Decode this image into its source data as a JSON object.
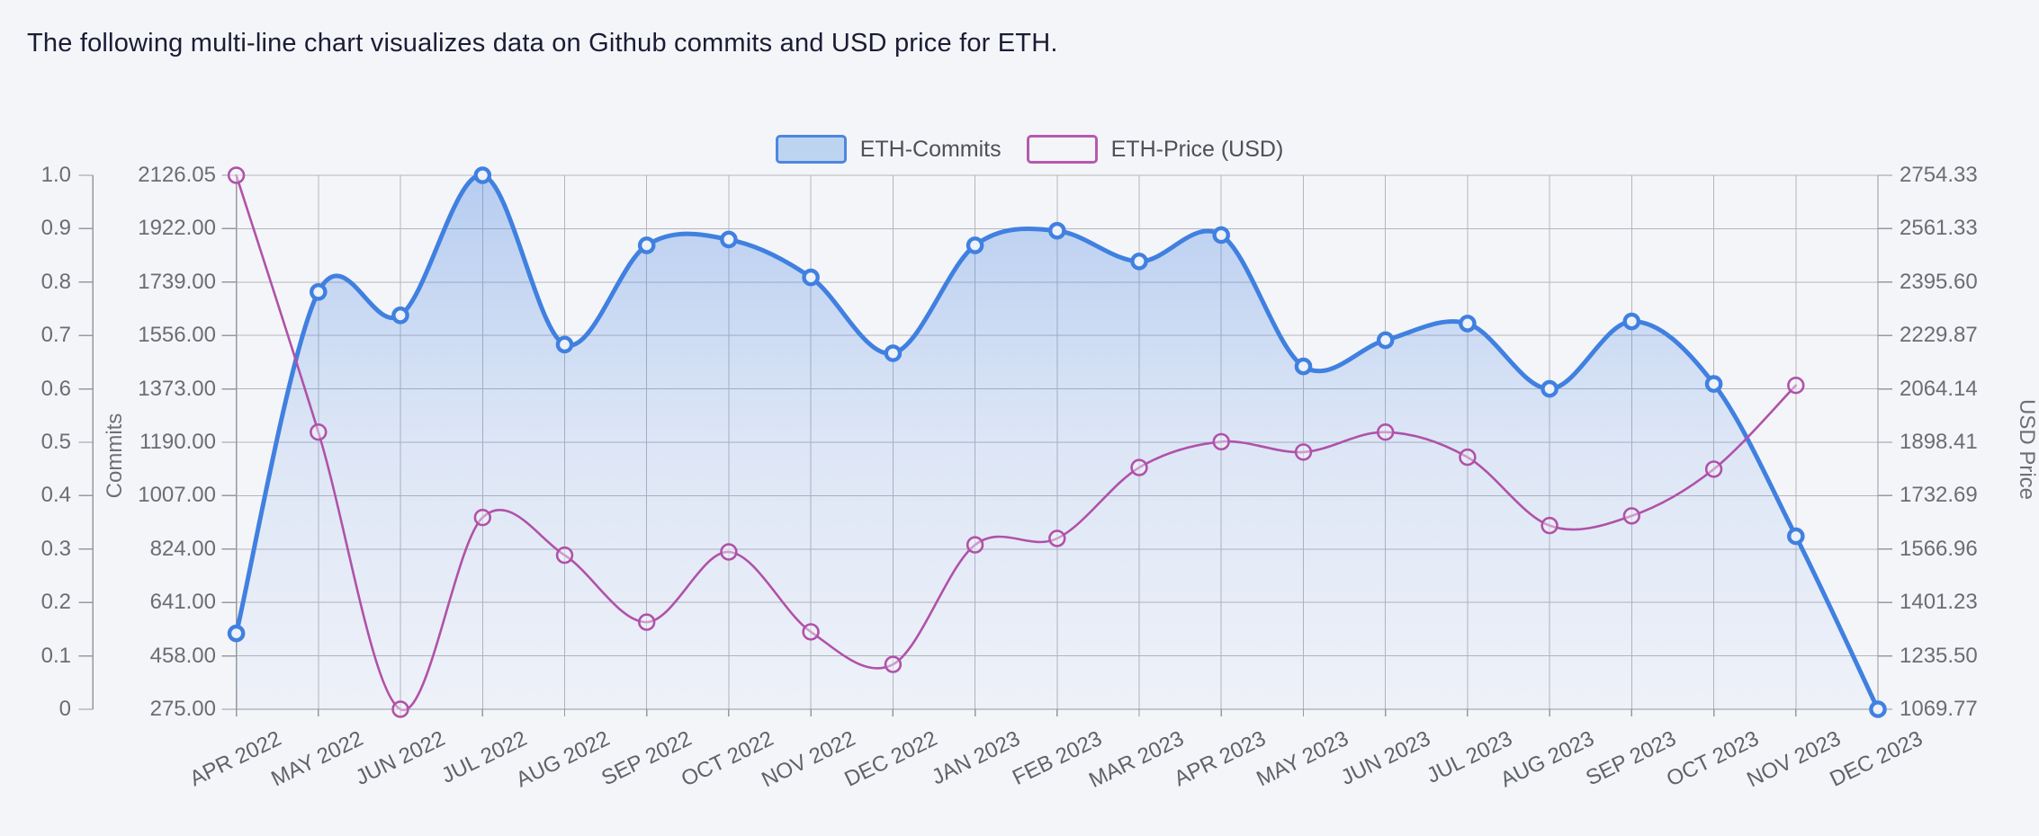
{
  "page": {
    "title": "The following multi-line chart visualizes data on Github commits and USD price for ETH.",
    "background": "#f4f5f9"
  },
  "legend": {
    "items": [
      {
        "label": "ETH-Commits",
        "border": "#4e86e0",
        "fill": "#bdd4f1"
      },
      {
        "label": "ETH-Price (USD)",
        "border": "#b55ab0",
        "fill": "transparent"
      }
    ]
  },
  "chart_data": {
    "type": "line",
    "title": "",
    "categories": [
      "APR 2022",
      "MAY 2022",
      "JUN 2022",
      "JUL 2022",
      "AUG 2022",
      "SEP 2022",
      "OCT 2022",
      "NOV 2022",
      "DEC 2022",
      "JAN 2023",
      "FEB 2023",
      "MAR 2023",
      "APR 2023",
      "MAY 2023",
      "JUN 2023",
      "JUL 2023",
      "AUG 2023",
      "SEP 2023",
      "OCT 2023",
      "NOV 2023",
      "DEC 2023"
    ],
    "series": [
      {
        "name": "ETH-Commits",
        "axis": "left",
        "style": "smooth-area",
        "color": "#4080e0",
        "marker": "hollow-circle",
        "values": [
          535,
          1705,
          1625,
          2126.05,
          1525,
          1865,
          1885,
          1755,
          1495,
          1865,
          1915,
          1810,
          1900,
          1450,
          1540,
          1597,
          1373,
          1604,
          1390,
          868,
          275
        ]
      },
      {
        "name": "ETH-Price (USD)",
        "axis": "right",
        "style": "smooth-line",
        "color": "#b052a8",
        "marker": "hollow-circle",
        "values": [
          2754.33,
          1930,
          1069.77,
          1665,
          1548,
          1340,
          1558,
          1310,
          1209,
          1580,
          1600,
          1820,
          1900,
          1868,
          1930,
          1852,
          1640,
          1670,
          1815,
          2075,
          null
        ]
      }
    ],
    "left_outer_axis": {
      "tick_labels": [
        "1.0",
        "0.9",
        "0.8",
        "0.7",
        "0.6",
        "0.5",
        "0.4",
        "0.3",
        "0.2",
        "0.1",
        "0"
      ]
    },
    "left_axis": {
      "name": "Commits",
      "tick_labels": [
        "2126.05",
        "1922.00",
        "1739.00",
        "1556.00",
        "1373.00",
        "1190.00",
        "1007.00",
        "824.00",
        "641.00",
        "458.00",
        "275.00"
      ],
      "min": 275,
      "max": 2126.05
    },
    "right_axis": {
      "name": "USD Price",
      "tick_labels": [
        "2754.33",
        "2561.33",
        "2395.60",
        "2229.87",
        "2064.14",
        "1898.41",
        "1732.69",
        "1566.96",
        "1401.23",
        "1235.50",
        "1069.77"
      ],
      "min": 1069.77,
      "max": 2754.33
    },
    "grid": true,
    "legend_position": "top-center",
    "x_label_rotation": -26,
    "colors": {
      "grid_line": "#b5b6bc",
      "axis_line": "#97999f",
      "tick_text": "#6a6d73",
      "marker_fill": "#edf1fa"
    }
  }
}
